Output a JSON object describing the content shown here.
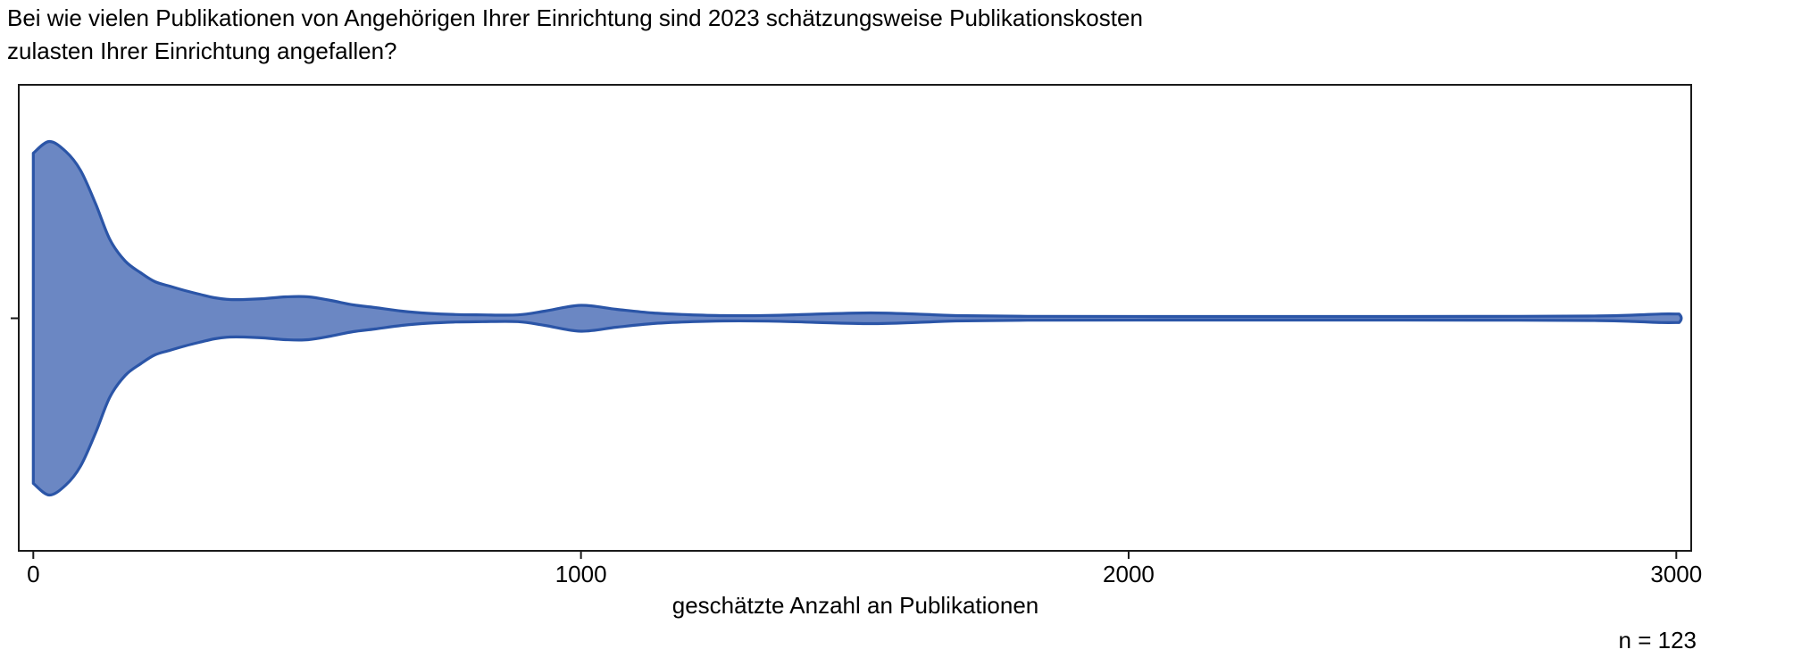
{
  "title": "Bei wie vielen Publikationen von Angehörigen Ihrer Einrichtung sind 2023 schätzungsweise Publikationskosten\nzulasten Ihrer Einrichtung angefallen?",
  "axis": {
    "label": "geschätzte Anzahl an Publikationen",
    "min": 0,
    "max": 3000,
    "ticks": [
      {
        "label": "0",
        "value": 0
      },
      {
        "label": "1000",
        "value": 1000
      },
      {
        "label": "2000",
        "value": 2000
      },
      {
        "label": "3000",
        "value": 3000
      }
    ]
  },
  "annotation": {
    "n_label": "n = 123"
  },
  "chart_data": {
    "type": "violin",
    "orientation": "horizontal",
    "title": "Bei wie vielen Publikationen von Angehörigen Ihrer Einrichtung sind 2023 schätzungsweise Publikationskosten zulasten Ihrer Einrichtung angefallen?",
    "xlabel": "geschätzte Anzahl an Publikationen",
    "xlim": [
      0,
      3050
    ],
    "x_ticks": [
      0,
      1000,
      2000,
      3000
    ],
    "n": 123,
    "grid": false,
    "legend": "none",
    "colors": {
      "fill": "#6b87c3",
      "stroke": "#2b55a7",
      "axis": "#1a1a1a"
    },
    "density_peaks_at_values": [
      30,
      500,
      1000,
      1500,
      3000
    ],
    "density_profile": [
      [
        0,
        185
      ],
      [
        29,
        198
      ],
      [
        59,
        187
      ],
      [
        86,
        166
      ],
      [
        114,
        128
      ],
      [
        140,
        88
      ],
      [
        168,
        64
      ],
      [
        196,
        51
      ],
      [
        222,
        41
      ],
      [
        249,
        36
      ],
      [
        277,
        31
      ],
      [
        303,
        27
      ],
      [
        331,
        23
      ],
      [
        359,
        21
      ],
      [
        385,
        21
      ],
      [
        421,
        22
      ],
      [
        461,
        24
      ],
      [
        502,
        24
      ],
      [
        543,
        20
      ],
      [
        584,
        15
      ],
      [
        624,
        12
      ],
      [
        673,
        8
      ],
      [
        722,
        5.5
      ],
      [
        771,
        4.2
      ],
      [
        820,
        3.8
      ],
      [
        885,
        3.8
      ],
      [
        934,
        8
      ],
      [
        1000,
        14.5
      ],
      [
        1065,
        10
      ],
      [
        1130,
        6
      ],
      [
        1195,
        4
      ],
      [
        1260,
        3
      ],
      [
        1342,
        3.2
      ],
      [
        1423,
        4.5
      ],
      [
        1529,
        6
      ],
      [
        1619,
        4.5
      ],
      [
        1684,
        3
      ],
      [
        1815,
        2.2
      ],
      [
        2059,
        2
      ],
      [
        2385,
        2
      ],
      [
        2712,
        2.2
      ],
      [
        2858,
        2.6
      ],
      [
        2924,
        3.6
      ],
      [
        2973,
        4.8
      ],
      [
        3005,
        4.8
      ]
    ]
  }
}
